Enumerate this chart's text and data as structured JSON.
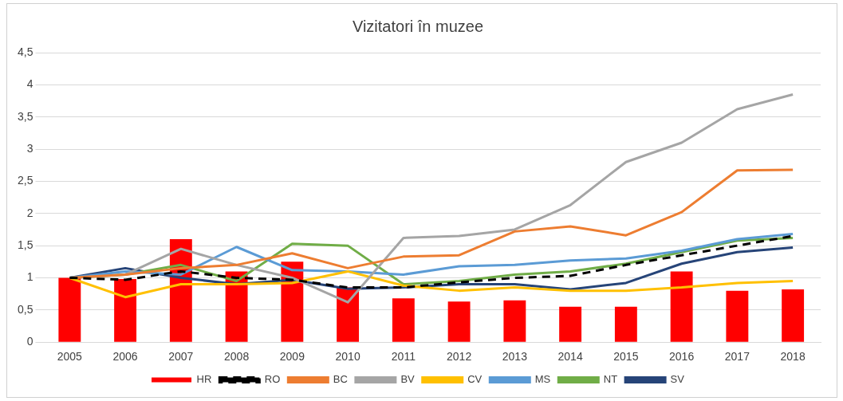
{
  "chart_data": {
    "type": "line",
    "title": "Vizitatori în muzee",
    "categories": [
      "2005",
      "2006",
      "2007",
      "2008",
      "2009",
      "2010",
      "2011",
      "2012",
      "2013",
      "2014",
      "2015",
      "2016",
      "2017",
      "2018"
    ],
    "series": [
      {
        "name": "HR",
        "type": "bar",
        "color": "#ff0000",
        "values": [
          1.0,
          0.98,
          1.6,
          1.1,
          1.25,
          0.85,
          0.68,
          0.63,
          0.65,
          0.55,
          0.55,
          1.1,
          0.8,
          0.82
        ]
      },
      {
        "name": "RO",
        "color": "#000000",
        "line_style": "dashed",
        "values": [
          1.0,
          0.97,
          1.1,
          1.0,
          0.97,
          0.85,
          0.85,
          0.93,
          1.0,
          1.03,
          1.2,
          1.35,
          1.5,
          1.65
        ]
      },
      {
        "name": "BC",
        "color": "#ed7d31",
        "values": [
          1.0,
          1.05,
          1.15,
          1.2,
          1.38,
          1.15,
          1.33,
          1.35,
          1.72,
          1.8,
          1.66,
          2.02,
          2.67,
          2.68
        ]
      },
      {
        "name": "BV",
        "color": "#a5a5a5",
        "values": [
          1.0,
          1.05,
          1.45,
          1.2,
          1.0,
          0.62,
          1.62,
          1.65,
          1.75,
          2.13,
          2.8,
          3.1,
          3.62,
          3.85
        ]
      },
      {
        "name": "CV",
        "color": "#ffc000",
        "values": [
          1.0,
          0.7,
          0.9,
          0.9,
          0.92,
          1.1,
          0.88,
          0.8,
          0.85,
          0.8,
          0.8,
          0.85,
          0.92,
          0.95
        ]
      },
      {
        "name": "MS",
        "color": "#5b9bd5",
        "values": [
          1.0,
          1.1,
          1.05,
          1.48,
          1.12,
          1.1,
          1.05,
          1.18,
          1.2,
          1.27,
          1.3,
          1.42,
          1.6,
          1.68
        ]
      },
      {
        "name": "NT",
        "color": "#70ad47",
        "values": [
          1.0,
          1.05,
          1.2,
          0.95,
          1.53,
          1.5,
          0.9,
          0.95,
          1.05,
          1.1,
          1.22,
          1.4,
          1.58,
          1.62
        ]
      },
      {
        "name": "SV",
        "color": "#264478",
        "values": [
          1.0,
          1.15,
          1.0,
          0.9,
          0.97,
          0.83,
          0.85,
          0.9,
          0.9,
          0.82,
          0.92,
          1.22,
          1.4,
          1.47
        ]
      }
    ],
    "ylim": [
      0,
      4.5
    ],
    "yticks": [
      0,
      {
        "value": 0.5,
        "label": "0,5"
      },
      1,
      {
        "value": 1.5,
        "label": "1,5"
      },
      2,
      {
        "value": 2.5,
        "label": "2,5"
      },
      3,
      {
        "value": 3.5,
        "label": "3,5"
      },
      4,
      {
        "value": 4.5,
        "label": "4,5"
      }
    ],
    "grid": "y",
    "legend": "bottom",
    "marker": "none",
    "line_style": "solid"
  }
}
